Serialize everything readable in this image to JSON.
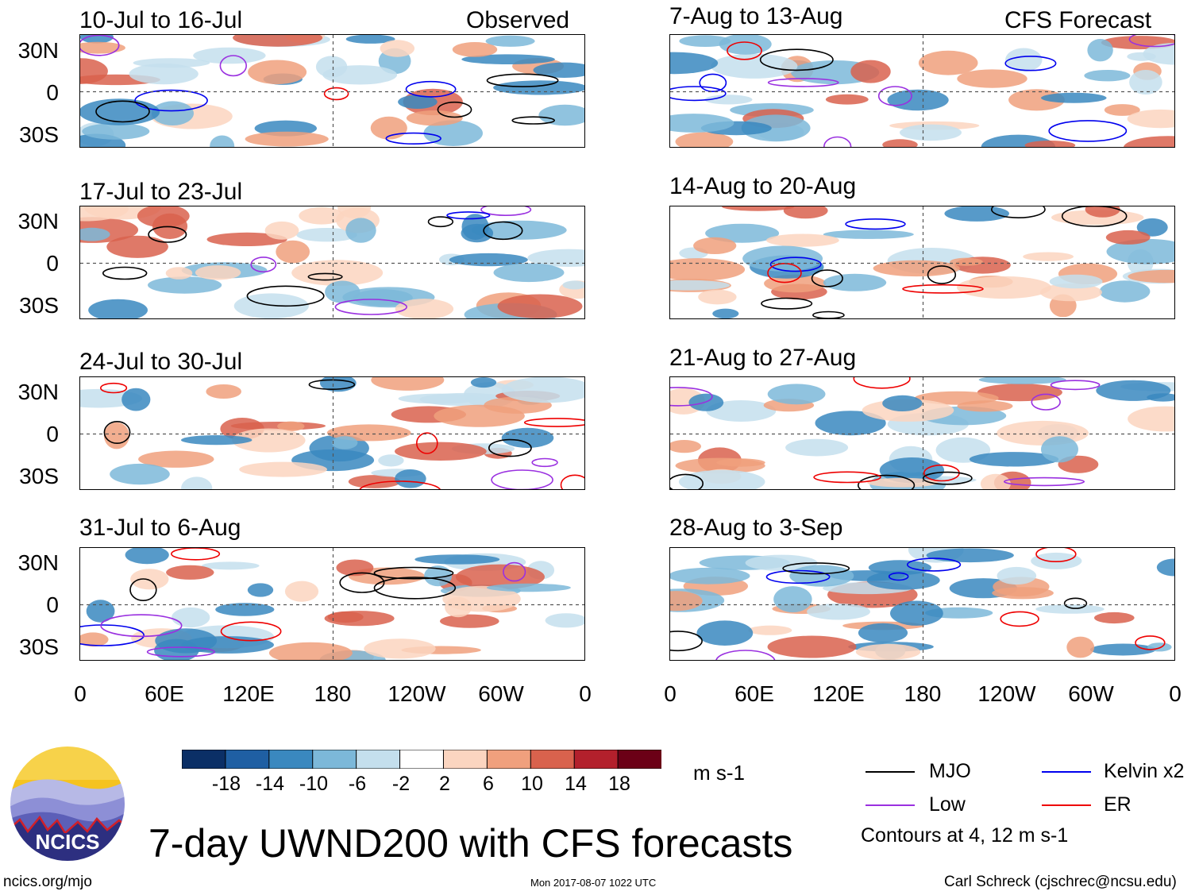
{
  "left_column": {
    "header_right": "Observed",
    "panels": [
      {
        "title": "10-Jul to 16-Jul"
      },
      {
        "title": "17-Jul to 23-Jul"
      },
      {
        "title": "24-Jul to 30-Jul"
      },
      {
        "title": "31-Jul to 6-Aug"
      }
    ]
  },
  "right_column": {
    "header_right": "CFS Forecast",
    "panels": [
      {
        "title": "7-Aug to 13-Aug"
      },
      {
        "title": "14-Aug to 20-Aug"
      },
      {
        "title": "21-Aug to 27-Aug"
      },
      {
        "title": "28-Aug to 3-Sep"
      }
    ]
  },
  "chart_data": {
    "type": "heatmap",
    "title": "7-day UWND200 with CFS forecasts",
    "variable": "UWND200",
    "units": "m s-1",
    "x_axis": {
      "ticks": [
        "0",
        "60E",
        "120E",
        "180",
        "120W",
        "60W",
        "0"
      ],
      "range_deg": [
        0,
        360
      ]
    },
    "y_axis": {
      "ticks": [
        "30N",
        "0",
        "30S"
      ],
      "range_deg": [
        -40,
        40
      ]
    },
    "colorbar": {
      "labels": [
        "-18",
        "-14",
        "-10",
        "-6",
        "-2",
        "2",
        "6",
        "10",
        "14",
        "18"
      ],
      "colors": [
        "#0b2f66",
        "#1f5fa3",
        "#3a88bf",
        "#7cb8d9",
        "#c4dfed",
        "#ffffff",
        "#fbd5c0",
        "#f0a07d",
        "#d9624d",
        "#b3202c",
        "#6b0016"
      ]
    },
    "legend": [
      {
        "label": "MJO",
        "color": "#000000"
      },
      {
        "label": "Kelvin x2",
        "color": "#0000ee"
      },
      {
        "label": "Low",
        "color": "#9a30e0"
      },
      {
        "label": "ER",
        "color": "#ee0000"
      }
    ],
    "contour_note": "Contours at 4, 12 m s-1"
  },
  "footer": {
    "logo_text": "NCICS",
    "main_title": "7-day UWND200 with CFS forecasts",
    "url": "ncics.org/mjo",
    "timestamp": "Mon 2017-08-07 1022 UTC",
    "credit": "Carl Schreck (cjschrec@ncsu.edu)"
  }
}
